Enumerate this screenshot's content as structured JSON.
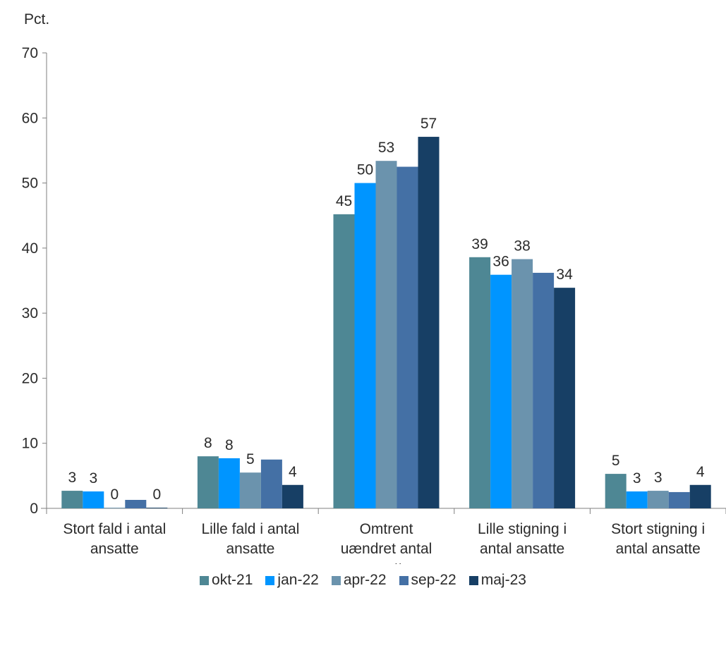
{
  "chart_data": {
    "type": "bar",
    "unit_label": "Pct.",
    "categories": [
      [
        "Stort fald i antal",
        "ansatte"
      ],
      [
        "Lille fald i antal",
        "ansatte"
      ],
      [
        "Omtrent",
        "uændret antal",
        "ansatte"
      ],
      [
        "Lille stigning i",
        "antal ansatte"
      ],
      [
        "Stort stigning i",
        "antal ansatte"
      ]
    ],
    "ylim": [
      0,
      70
    ],
    "yticks": [
      0,
      10,
      20,
      30,
      40,
      50,
      60,
      70
    ],
    "grid": false,
    "legend_position": "bottom",
    "series": [
      {
        "name": "okt-21",
        "color": "#4e8794",
        "values": [
          2.7,
          8.0,
          45.2,
          38.6,
          5.3
        ],
        "labels": [
          "3",
          "8",
          "45",
          "39",
          "5"
        ]
      },
      {
        "name": "jan-22",
        "color": "#0095ff",
        "values": [
          2.6,
          7.7,
          50.0,
          35.9,
          2.6
        ],
        "labels": [
          "3",
          "8",
          "50",
          "36",
          "3"
        ]
      },
      {
        "name": "apr-22",
        "color": "#6b93ad",
        "values": [
          0.1,
          5.5,
          53.4,
          38.3,
          2.7
        ],
        "labels": [
          "0",
          "5",
          "53",
          "38",
          "3"
        ]
      },
      {
        "name": "sep-22",
        "color": "#4470a5",
        "values": [
          1.3,
          7.5,
          52.5,
          36.2,
          2.5
        ],
        "labels": [
          "",
          "",
          "",
          "",
          ""
        ]
      },
      {
        "name": "maj-23",
        "color": "#173f65",
        "values": [
          0.1,
          3.6,
          57.1,
          33.9,
          3.6
        ],
        "labels": [
          "0",
          "4",
          "57",
          "34",
          "4"
        ]
      }
    ]
  }
}
